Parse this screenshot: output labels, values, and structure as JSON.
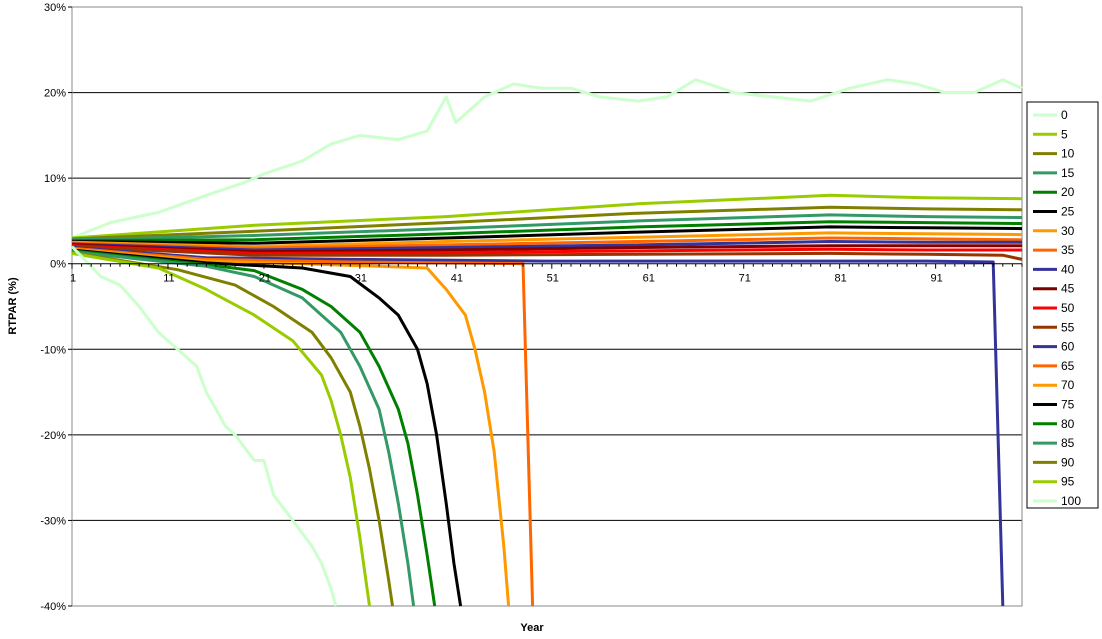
{
  "chart_data": {
    "type": "line",
    "title": "",
    "xlabel": "Year",
    "ylabel": "RTPAR (%)",
    "xlim": [
      1,
      100
    ],
    "ylim": [
      -40,
      30
    ],
    "grid": true,
    "legend_position": "right",
    "x_ticks": [
      1,
      11,
      21,
      31,
      41,
      51,
      61,
      71,
      81,
      91
    ],
    "x_tick_labels": [
      "1",
      "11",
      "21",
      "31",
      "41",
      "51",
      "61",
      "71",
      "81",
      "91"
    ],
    "y_ticks": [
      -40,
      -30,
      -20,
      -10,
      0,
      10,
      20,
      30
    ],
    "y_tick_labels": [
      "-40%",
      "-30%",
      "-20%",
      "-10%",
      "0%",
      "10%",
      "20%",
      "30%"
    ],
    "series": [
      {
        "name": "0",
        "color": "#ccffcc",
        "points": [
          [
            1,
            3
          ],
          [
            5,
            4.8
          ],
          [
            10,
            6
          ],
          [
            15,
            8
          ],
          [
            19,
            9.5
          ],
          [
            21,
            10.5
          ],
          [
            25,
            12
          ],
          [
            28,
            14
          ],
          [
            31,
            15
          ],
          [
            35,
            14.5
          ],
          [
            38,
            15.5
          ],
          [
            40,
            19.5
          ],
          [
            41,
            16.5
          ],
          [
            44,
            19.5
          ],
          [
            47,
            21
          ],
          [
            50,
            20.5
          ],
          [
            53,
            20.5
          ],
          [
            56,
            19.5
          ],
          [
            60,
            19
          ],
          [
            63,
            19.5
          ],
          [
            66,
            21.5
          ],
          [
            70,
            20
          ],
          [
            74,
            19.5
          ],
          [
            78,
            19
          ],
          [
            82,
            20.5
          ],
          [
            86,
            21.5
          ],
          [
            89,
            21
          ],
          [
            92,
            20
          ],
          [
            95,
            20
          ],
          [
            98,
            21.5
          ],
          [
            100,
            20.5
          ]
        ]
      },
      {
        "name": "5",
        "color": "#99cc00",
        "points": [
          [
            1,
            3
          ],
          [
            20,
            4.5
          ],
          [
            40,
            5.5
          ],
          [
            60,
            7
          ],
          [
            80,
            8
          ],
          [
            90,
            7.7
          ],
          [
            100,
            7.6
          ]
        ]
      },
      {
        "name": "10",
        "color": "#808000",
        "points": [
          [
            1,
            2.9
          ],
          [
            20,
            3.8
          ],
          [
            40,
            4.8
          ],
          [
            60,
            5.9
          ],
          [
            80,
            6.6
          ],
          [
            90,
            6.4
          ],
          [
            100,
            6.3
          ]
        ]
      },
      {
        "name": "15",
        "color": "#339966",
        "points": [
          [
            1,
            2.8
          ],
          [
            20,
            3.3
          ],
          [
            40,
            4.1
          ],
          [
            60,
            5
          ],
          [
            80,
            5.7
          ],
          [
            90,
            5.5
          ],
          [
            100,
            5.4
          ]
        ]
      },
      {
        "name": "20",
        "color": "#008000",
        "points": [
          [
            1,
            2.7
          ],
          [
            20,
            2.8
          ],
          [
            40,
            3.5
          ],
          [
            60,
            4.3
          ],
          [
            80,
            4.9
          ],
          [
            90,
            4.8
          ],
          [
            100,
            4.7
          ]
        ]
      },
      {
        "name": "25",
        "color": "#000000",
        "points": [
          [
            1,
            2.6
          ],
          [
            20,
            2.4
          ],
          [
            40,
            3
          ],
          [
            60,
            3.7
          ],
          [
            80,
            4.3
          ],
          [
            90,
            4.2
          ],
          [
            100,
            4.1
          ]
        ]
      },
      {
        "name": "30",
        "color": "#ff9900",
        "points": [
          [
            1,
            2.5
          ],
          [
            20,
            2
          ],
          [
            40,
            2.6
          ],
          [
            60,
            3.1
          ],
          [
            80,
            3.6
          ],
          [
            90,
            3.5
          ],
          [
            100,
            3.4
          ]
        ]
      },
      {
        "name": "35",
        "color": "#ff6600",
        "points": [
          [
            1,
            2.4
          ],
          [
            20,
            1.8
          ],
          [
            40,
            2.2
          ],
          [
            60,
            2.6
          ],
          [
            80,
            3
          ],
          [
            90,
            2.9
          ],
          [
            100,
            2.8
          ]
        ]
      },
      {
        "name": "40",
        "color": "#333399",
        "points": [
          [
            1,
            2.3
          ],
          [
            20,
            1.6
          ],
          [
            40,
            1.9
          ],
          [
            60,
            2.2
          ],
          [
            80,
            2.6
          ],
          [
            90,
            2.5
          ],
          [
            100,
            2.5
          ]
        ]
      },
      {
        "name": "45",
        "color": "#800000",
        "points": [
          [
            1,
            2.2
          ],
          [
            20,
            1.4
          ],
          [
            40,
            1.6
          ],
          [
            60,
            1.9
          ],
          [
            80,
            2.1
          ],
          [
            90,
            2.1
          ],
          [
            100,
            2.1
          ]
        ]
      },
      {
        "name": "50",
        "color": "#ff0000",
        "points": [
          [
            1,
            2.1
          ],
          [
            20,
            1.2
          ],
          [
            40,
            1.3
          ],
          [
            60,
            1.5
          ],
          [
            80,
            1.7
          ],
          [
            90,
            1.6
          ],
          [
            100,
            1.6
          ]
        ]
      },
      {
        "name": "55",
        "color": "#993300",
        "points": [
          [
            1,
            2
          ],
          [
            20,
            1
          ],
          [
            40,
            1
          ],
          [
            60,
            1.1
          ],
          [
            80,
            1.2
          ],
          [
            90,
            1.1
          ],
          [
            98,
            1
          ],
          [
            100,
            0.5
          ]
        ]
      },
      {
        "name": "60",
        "color": "#333399",
        "points": [
          [
            1,
            1.9
          ],
          [
            15,
            0.7
          ],
          [
            30,
            0.5
          ],
          [
            50,
            0.3
          ],
          [
            70,
            0.3
          ],
          [
            90,
            0.3
          ],
          [
            97,
            0.2
          ],
          [
            98,
            -40
          ]
        ]
      },
      {
        "name": "65",
        "color": "#ff6600",
        "points": [
          [
            1,
            1.8
          ],
          [
            15,
            0.5
          ],
          [
            30,
            0.2
          ],
          [
            48,
            0
          ],
          [
            49,
            -40
          ]
        ]
      },
      {
        "name": "70",
        "color": "#ff9900",
        "points": [
          [
            1,
            1.7
          ],
          [
            15,
            0.3
          ],
          [
            25,
            0
          ],
          [
            33,
            -0.3
          ],
          [
            38,
            -0.5
          ],
          [
            40,
            -3
          ],
          [
            42,
            -6
          ],
          [
            43,
            -10
          ],
          [
            44,
            -15
          ],
          [
            45,
            -22
          ],
          [
            46,
            -33
          ],
          [
            46.5,
            -40
          ]
        ]
      },
      {
        "name": "75",
        "color": "#000000",
        "points": [
          [
            1,
            1.6
          ],
          [
            15,
            0.1
          ],
          [
            25,
            -0.5
          ],
          [
            30,
            -1.5
          ],
          [
            33,
            -4
          ],
          [
            35,
            -6
          ],
          [
            37,
            -10
          ],
          [
            38,
            -14
          ],
          [
            39,
            -20
          ],
          [
            40,
            -28
          ],
          [
            40.8,
            -35
          ],
          [
            41.5,
            -40
          ]
        ]
      },
      {
        "name": "80",
        "color": "#008000",
        "points": [
          [
            1,
            1.5
          ],
          [
            15,
            -0.1
          ],
          [
            20,
            -0.8
          ],
          [
            25,
            -3
          ],
          [
            28,
            -5
          ],
          [
            31,
            -8
          ],
          [
            33,
            -12
          ],
          [
            35,
            -17
          ],
          [
            36,
            -21
          ],
          [
            37,
            -27
          ],
          [
            38,
            -34
          ],
          [
            38.8,
            -40
          ]
        ]
      },
      {
        "name": "85",
        "color": "#339966",
        "points": [
          [
            1,
            1.4
          ],
          [
            15,
            -0.3
          ],
          [
            20,
            -1.5
          ],
          [
            25,
            -4
          ],
          [
            27,
            -6
          ],
          [
            29,
            -8
          ],
          [
            31,
            -12
          ],
          [
            33,
            -17
          ],
          [
            34,
            -22
          ],
          [
            35,
            -28
          ],
          [
            36,
            -35
          ],
          [
            36.6,
            -40
          ]
        ]
      },
      {
        "name": "90",
        "color": "#808000",
        "points": [
          [
            1,
            1.3
          ],
          [
            12,
            -0.7
          ],
          [
            18,
            -2.5
          ],
          [
            22,
            -5
          ],
          [
            26,
            -8
          ],
          [
            28,
            -11
          ],
          [
            30,
            -15
          ],
          [
            31,
            -19
          ],
          [
            32,
            -24
          ],
          [
            33,
            -30
          ],
          [
            34,
            -37
          ],
          [
            34.4,
            -40
          ]
        ]
      },
      {
        "name": "95",
        "color": "#99cc00",
        "points": [
          [
            1,
            1.2
          ],
          [
            10,
            -0.5
          ],
          [
            15,
            -3
          ],
          [
            20,
            -6
          ],
          [
            24,
            -9
          ],
          [
            27,
            -13
          ],
          [
            28,
            -16
          ],
          [
            29,
            -20
          ],
          [
            30,
            -25
          ],
          [
            31,
            -32
          ],
          [
            32,
            -40
          ]
        ]
      },
      {
        "name": "100",
        "color": "#ccffcc",
        "points": [
          [
            1,
            2
          ],
          [
            4,
            -1.5
          ],
          [
            6,
            -2.5
          ],
          [
            8,
            -5
          ],
          [
            10,
            -8
          ],
          [
            12,
            -10
          ],
          [
            14,
            -12
          ],
          [
            15,
            -15
          ],
          [
            17,
            -19
          ],
          [
            18,
            -20
          ],
          [
            20,
            -23
          ],
          [
            21,
            -23
          ],
          [
            22,
            -27
          ],
          [
            24,
            -30
          ],
          [
            26,
            -33
          ],
          [
            27,
            -35
          ],
          [
            28,
            -38
          ],
          [
            28.5,
            -40
          ]
        ]
      }
    ]
  }
}
